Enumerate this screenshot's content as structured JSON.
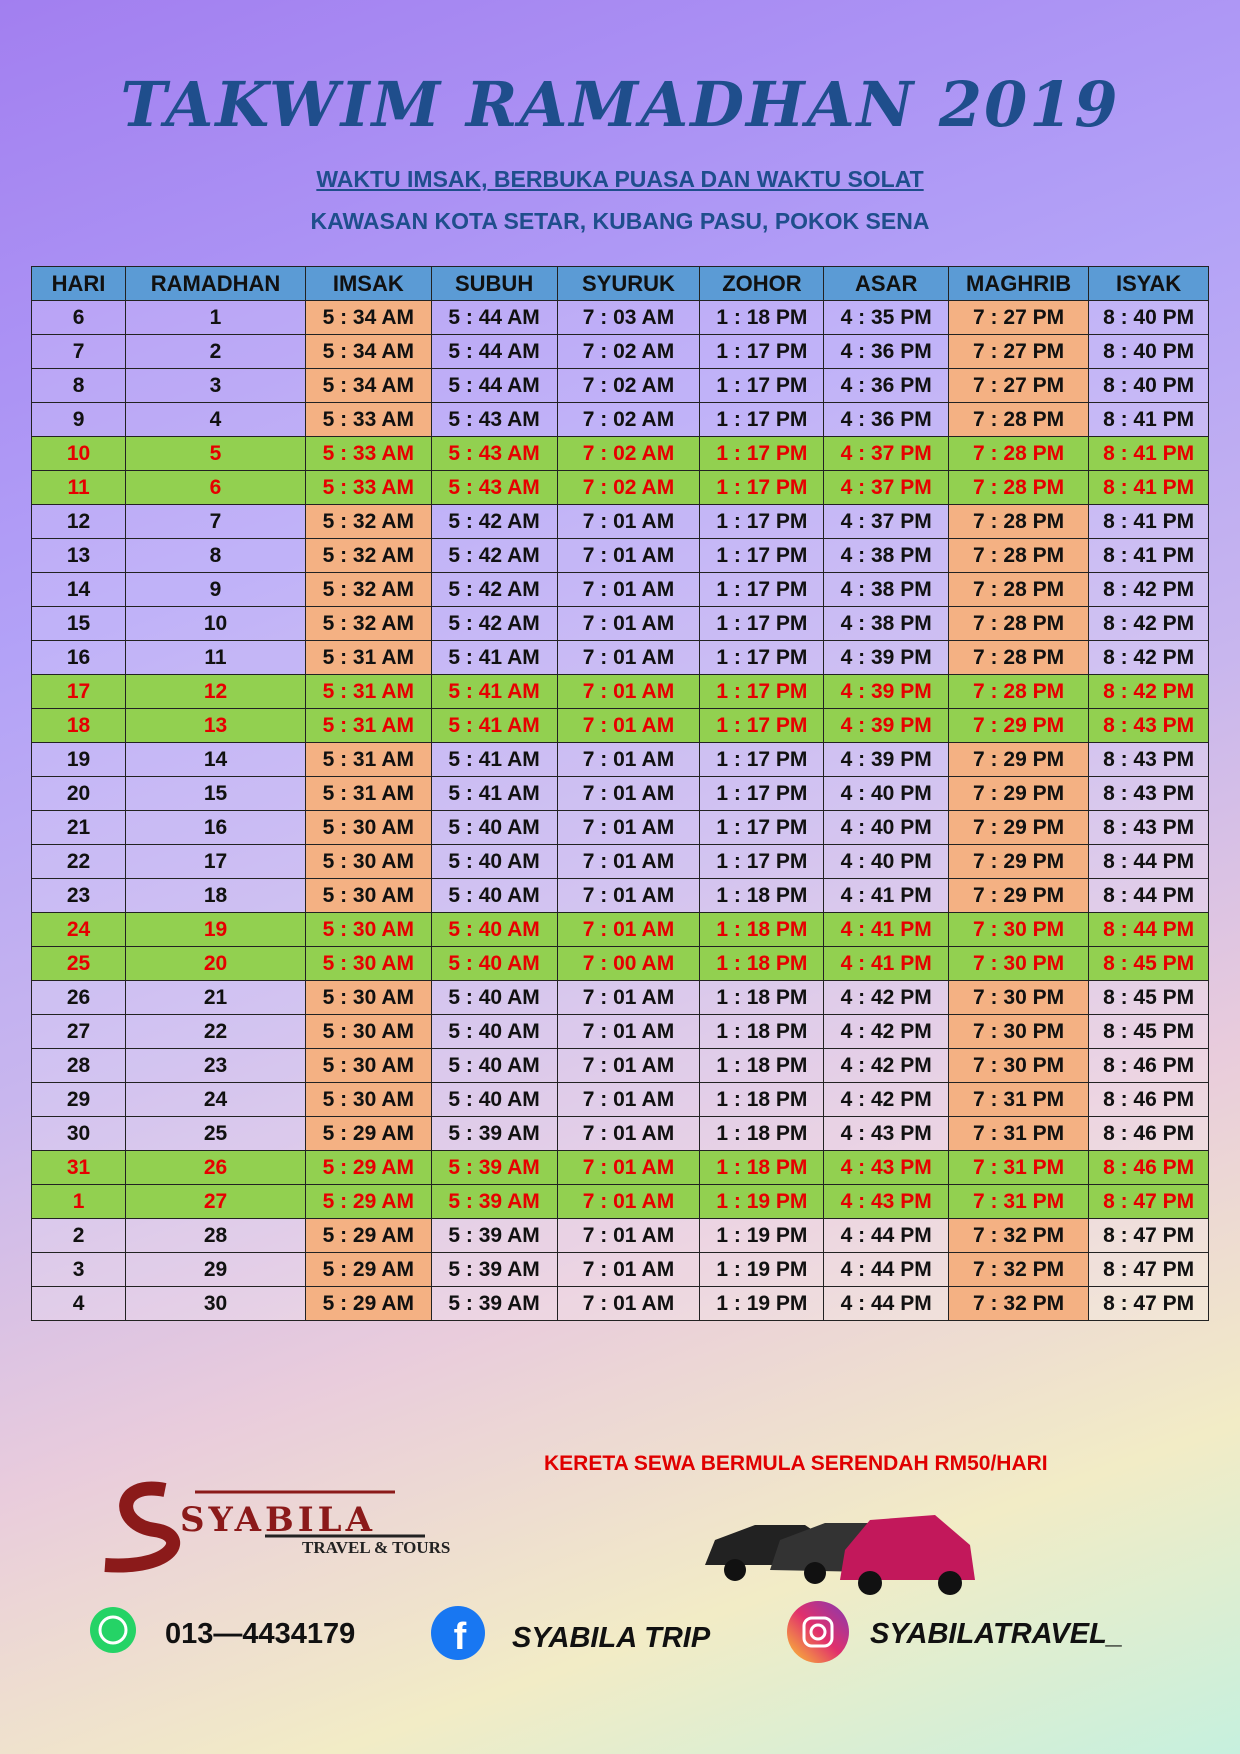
{
  "header": {
    "title": "TAKWIM RAMADHAN 2019",
    "subtitle": "WAKTU IMSAK, BERBUKA PUASA DAN WAKTU  SOLAT",
    "area": "KAWASAN KOTA SETAR, KUBANG PASU, POKOK SENA"
  },
  "table": {
    "columns": [
      "HARI",
      "RAMADHAN",
      "IMSAK",
      "SUBUH",
      "SYURUK",
      "ZOHOR",
      "ASAR",
      "MAGHRIB",
      "ISYAK"
    ],
    "highlighted_rows": [
      4,
      5,
      11,
      12,
      18,
      19,
      25,
      26
    ],
    "rows": [
      [
        "6",
        "1",
        "5 : 34 AM",
        "5 : 44 AM",
        "7 : 03 AM",
        "1 : 18 PM",
        "4 : 35 PM",
        "7 : 27 PM",
        "8 : 40 PM"
      ],
      [
        "7",
        "2",
        "5 : 34 AM",
        "5 : 44 AM",
        "7 : 02 AM",
        "1 : 17 PM",
        "4 : 36 PM",
        "7 : 27 PM",
        "8 : 40 PM"
      ],
      [
        "8",
        "3",
        "5 : 34 AM",
        "5 : 44 AM",
        "7 : 02 AM",
        "1 : 17 PM",
        "4 : 36 PM",
        "7 : 27 PM",
        "8 : 40 PM"
      ],
      [
        "9",
        "4",
        "5 : 33 AM",
        "5 : 43 AM",
        "7 : 02 AM",
        "1 : 17 PM",
        "4 : 36 PM",
        "7 : 28 PM",
        "8 : 41 PM"
      ],
      [
        "10",
        "5",
        "5 : 33 AM",
        "5 : 43 AM",
        "7 : 02 AM",
        "1 : 17 PM",
        "4 : 37 PM",
        "7 : 28 PM",
        "8 : 41 PM"
      ],
      [
        "11",
        "6",
        "5 : 33 AM",
        "5 : 43 AM",
        "7 : 02 AM",
        "1 : 17 PM",
        "4 : 37 PM",
        "7 : 28 PM",
        "8 : 41 PM"
      ],
      [
        "12",
        "7",
        "5 : 32 AM",
        "5 : 42 AM",
        "7 : 01 AM",
        "1 : 17 PM",
        "4 : 37 PM",
        "7 : 28 PM",
        "8 : 41 PM"
      ],
      [
        "13",
        "8",
        "5 : 32 AM",
        "5 : 42 AM",
        "7 : 01 AM",
        "1 : 17 PM",
        "4 : 38 PM",
        "7 : 28 PM",
        "8 : 41 PM"
      ],
      [
        "14",
        "9",
        "5 : 32 AM",
        "5 : 42 AM",
        "7 : 01 AM",
        "1 : 17 PM",
        "4 : 38 PM",
        "7 : 28 PM",
        "8 : 42 PM"
      ],
      [
        "15",
        "10",
        "5 : 32 AM",
        "5 : 42 AM",
        "7 : 01 AM",
        "1 : 17 PM",
        "4 : 38 PM",
        "7 : 28 PM",
        "8 : 42 PM"
      ],
      [
        "16",
        "11",
        "5 : 31 AM",
        "5 : 41 AM",
        "7 : 01 AM",
        "1 : 17 PM",
        "4 : 39 PM",
        "7 : 28 PM",
        "8 : 42 PM"
      ],
      [
        "17",
        "12",
        "5 : 31 AM",
        "5 : 41 AM",
        "7 : 01 AM",
        "1 : 17 PM",
        "4 : 39 PM",
        "7 : 28 PM",
        "8 : 42 PM"
      ],
      [
        "18",
        "13",
        "5 : 31 AM",
        "5 : 41 AM",
        "7 : 01 AM",
        "1 : 17 PM",
        "4 : 39 PM",
        "7 : 29 PM",
        "8 : 43 PM"
      ],
      [
        "19",
        "14",
        "5 : 31 AM",
        "5 : 41 AM",
        "7 : 01 AM",
        "1 : 17 PM",
        "4 : 39 PM",
        "7 : 29 PM",
        "8 : 43 PM"
      ],
      [
        "20",
        "15",
        "5 : 31 AM",
        "5 : 41 AM",
        "7 : 01 AM",
        "1 : 17 PM",
        "4 : 40 PM",
        "7 : 29 PM",
        "8 : 43 PM"
      ],
      [
        "21",
        "16",
        "5 : 30 AM",
        "5 : 40 AM",
        "7 : 01 AM",
        "1 : 17 PM",
        "4 : 40 PM",
        "7 : 29 PM",
        "8 : 43 PM"
      ],
      [
        "22",
        "17",
        "5 : 30 AM",
        "5 : 40 AM",
        "7 : 01 AM",
        "1 : 17 PM",
        "4 : 40 PM",
        "7 : 29 PM",
        "8 : 44 PM"
      ],
      [
        "23",
        "18",
        "5 : 30 AM",
        "5 : 40 AM",
        "7 : 01 AM",
        "1 : 18 PM",
        "4 : 41 PM",
        "7 : 29 PM",
        "8 : 44 PM"
      ],
      [
        "24",
        "19",
        "5 : 30 AM",
        "5 : 40 AM",
        "7 : 01 AM",
        "1 : 18 PM",
        "4 : 41 PM",
        "7 : 30 PM",
        "8 : 44 PM"
      ],
      [
        "25",
        "20",
        "5 : 30 AM",
        "5 : 40 AM",
        "7 : 00 AM",
        "1 : 18 PM",
        "4 : 41 PM",
        "7 : 30 PM",
        "8 : 45 PM"
      ],
      [
        "26",
        "21",
        "5 : 30 AM",
        "5 : 40 AM",
        "7 : 01 AM",
        "1 : 18 PM",
        "4 : 42 PM",
        "7 : 30 PM",
        "8 : 45 PM"
      ],
      [
        "27",
        "22",
        "5 : 30 AM",
        "5 : 40 AM",
        "7 : 01 AM",
        "1 : 18 PM",
        "4 : 42 PM",
        "7 : 30 PM",
        "8 : 45 PM"
      ],
      [
        "28",
        "23",
        "5 : 30 AM",
        "5 : 40 AM",
        "7 : 01 AM",
        "1 : 18 PM",
        "4 : 42 PM",
        "7 : 30 PM",
        "8 : 46 PM"
      ],
      [
        "29",
        "24",
        "5 : 30 AM",
        "5 : 40 AM",
        "7 : 01 AM",
        "1 : 18 PM",
        "4 : 42 PM",
        "7 : 31 PM",
        "8 : 46 PM"
      ],
      [
        "30",
        "25",
        "5 : 29 AM",
        "5 : 39 AM",
        "7 : 01 AM",
        "1 : 18 PM",
        "4 : 43 PM",
        "7 : 31 PM",
        "8 : 46 PM"
      ],
      [
        "31",
        "26",
        "5 : 29 AM",
        "5 : 39 AM",
        "7 : 01 AM",
        "1 : 18 PM",
        "4 : 43 PM",
        "7 : 31 PM",
        "8 : 46 PM"
      ],
      [
        "1",
        "27",
        "5 : 29 AM",
        "5 : 39 AM",
        "7 : 01 AM",
        "1 : 19 PM",
        "4 : 43 PM",
        "7 : 31 PM",
        "8 : 47 PM"
      ],
      [
        "2",
        "28",
        "5 : 29 AM",
        "5 : 39 AM",
        "7 : 01 AM",
        "1 : 19 PM",
        "4 : 44 PM",
        "7 : 32 PM",
        "8 : 47 PM"
      ],
      [
        "3",
        "29",
        "5 : 29 AM",
        "5 : 39 AM",
        "7 : 01 AM",
        "1 : 19 PM",
        "4 : 44 PM",
        "7 : 32 PM",
        "8 : 47 PM"
      ],
      [
        "4",
        "30",
        "5 : 29 AM",
        "5 : 39 AM",
        "7 : 01 AM",
        "1 : 19 PM",
        "4 : 44 PM",
        "7 : 32 PM",
        "8 : 47 PM"
      ]
    ]
  },
  "footer": {
    "promo": "KERETA SEWA BERMULA SERENDAH RM50/HARI",
    "logo": "SYABILA",
    "logo_tagline": "TRAVEL & TOURS",
    "phone": "013—4434179",
    "facebook": "SYABILA TRIP",
    "instagram": "SYABILATRAVEL_"
  }
}
